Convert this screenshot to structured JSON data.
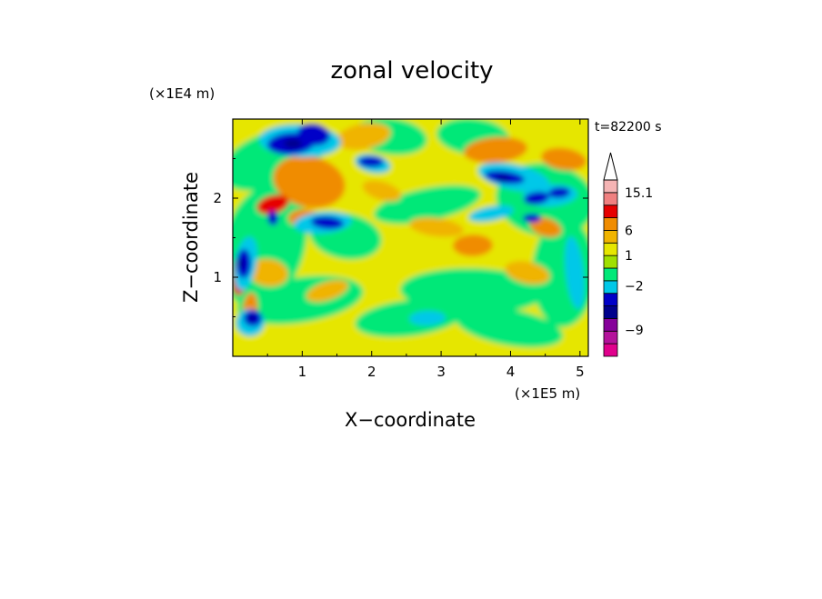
{
  "chart_data": {
    "type": "heatmap",
    "title": "zonal velocity",
    "xlabel": "X−coordinate",
    "ylabel": "Z−coordinate",
    "x_unit": "(×1E5 m)",
    "y_unit": "(×1E4 m)",
    "time_label": "t=82200 s",
    "xlim": [
      0,
      5.12
    ],
    "ylim": [
      0,
      3.0
    ],
    "x_ticks": [
      1,
      2,
      3,
      4,
      5
    ],
    "x_tick_labels": [
      "1",
      "2",
      "3",
      "4",
      "5"
    ],
    "y_ticks": [
      1,
      2
    ],
    "y_tick_labels": [
      "1",
      "2"
    ],
    "colorbar": {
      "levels": [
        {
          "color": "#e0008c"
        },
        {
          "color": "#b4129b"
        },
        {
          "color": "#86009a"
        },
        {
          "color": "#00008c"
        },
        {
          "color": "#0000c8"
        },
        {
          "color": "#00c8e8"
        },
        {
          "color": "#00e878"
        },
        {
          "color": "#a0e000"
        },
        {
          "color": "#e6e600"
        },
        {
          "color": "#f0b400"
        },
        {
          "color": "#f08c00"
        },
        {
          "color": "#e60000"
        },
        {
          "color": "#f08080"
        },
        {
          "color": "#f5b4b4"
        },
        {
          "color": "#ffffff"
        }
      ],
      "labels": [
        {
          "text": "15.1",
          "level": 13
        },
        {
          "text": "6",
          "level": 10
        },
        {
          "text": "1",
          "level": 8
        },
        {
          "text": "−2",
          "level": 5.6
        },
        {
          "text": "−9",
          "level": 2.1
        }
      ]
    },
    "field_palette": [
      "#0000c8",
      "#00c8e8",
      "#00e878",
      "#e6e600",
      "#f0b400",
      "#f08c00",
      "#e60000",
      "#00008c"
    ]
  }
}
